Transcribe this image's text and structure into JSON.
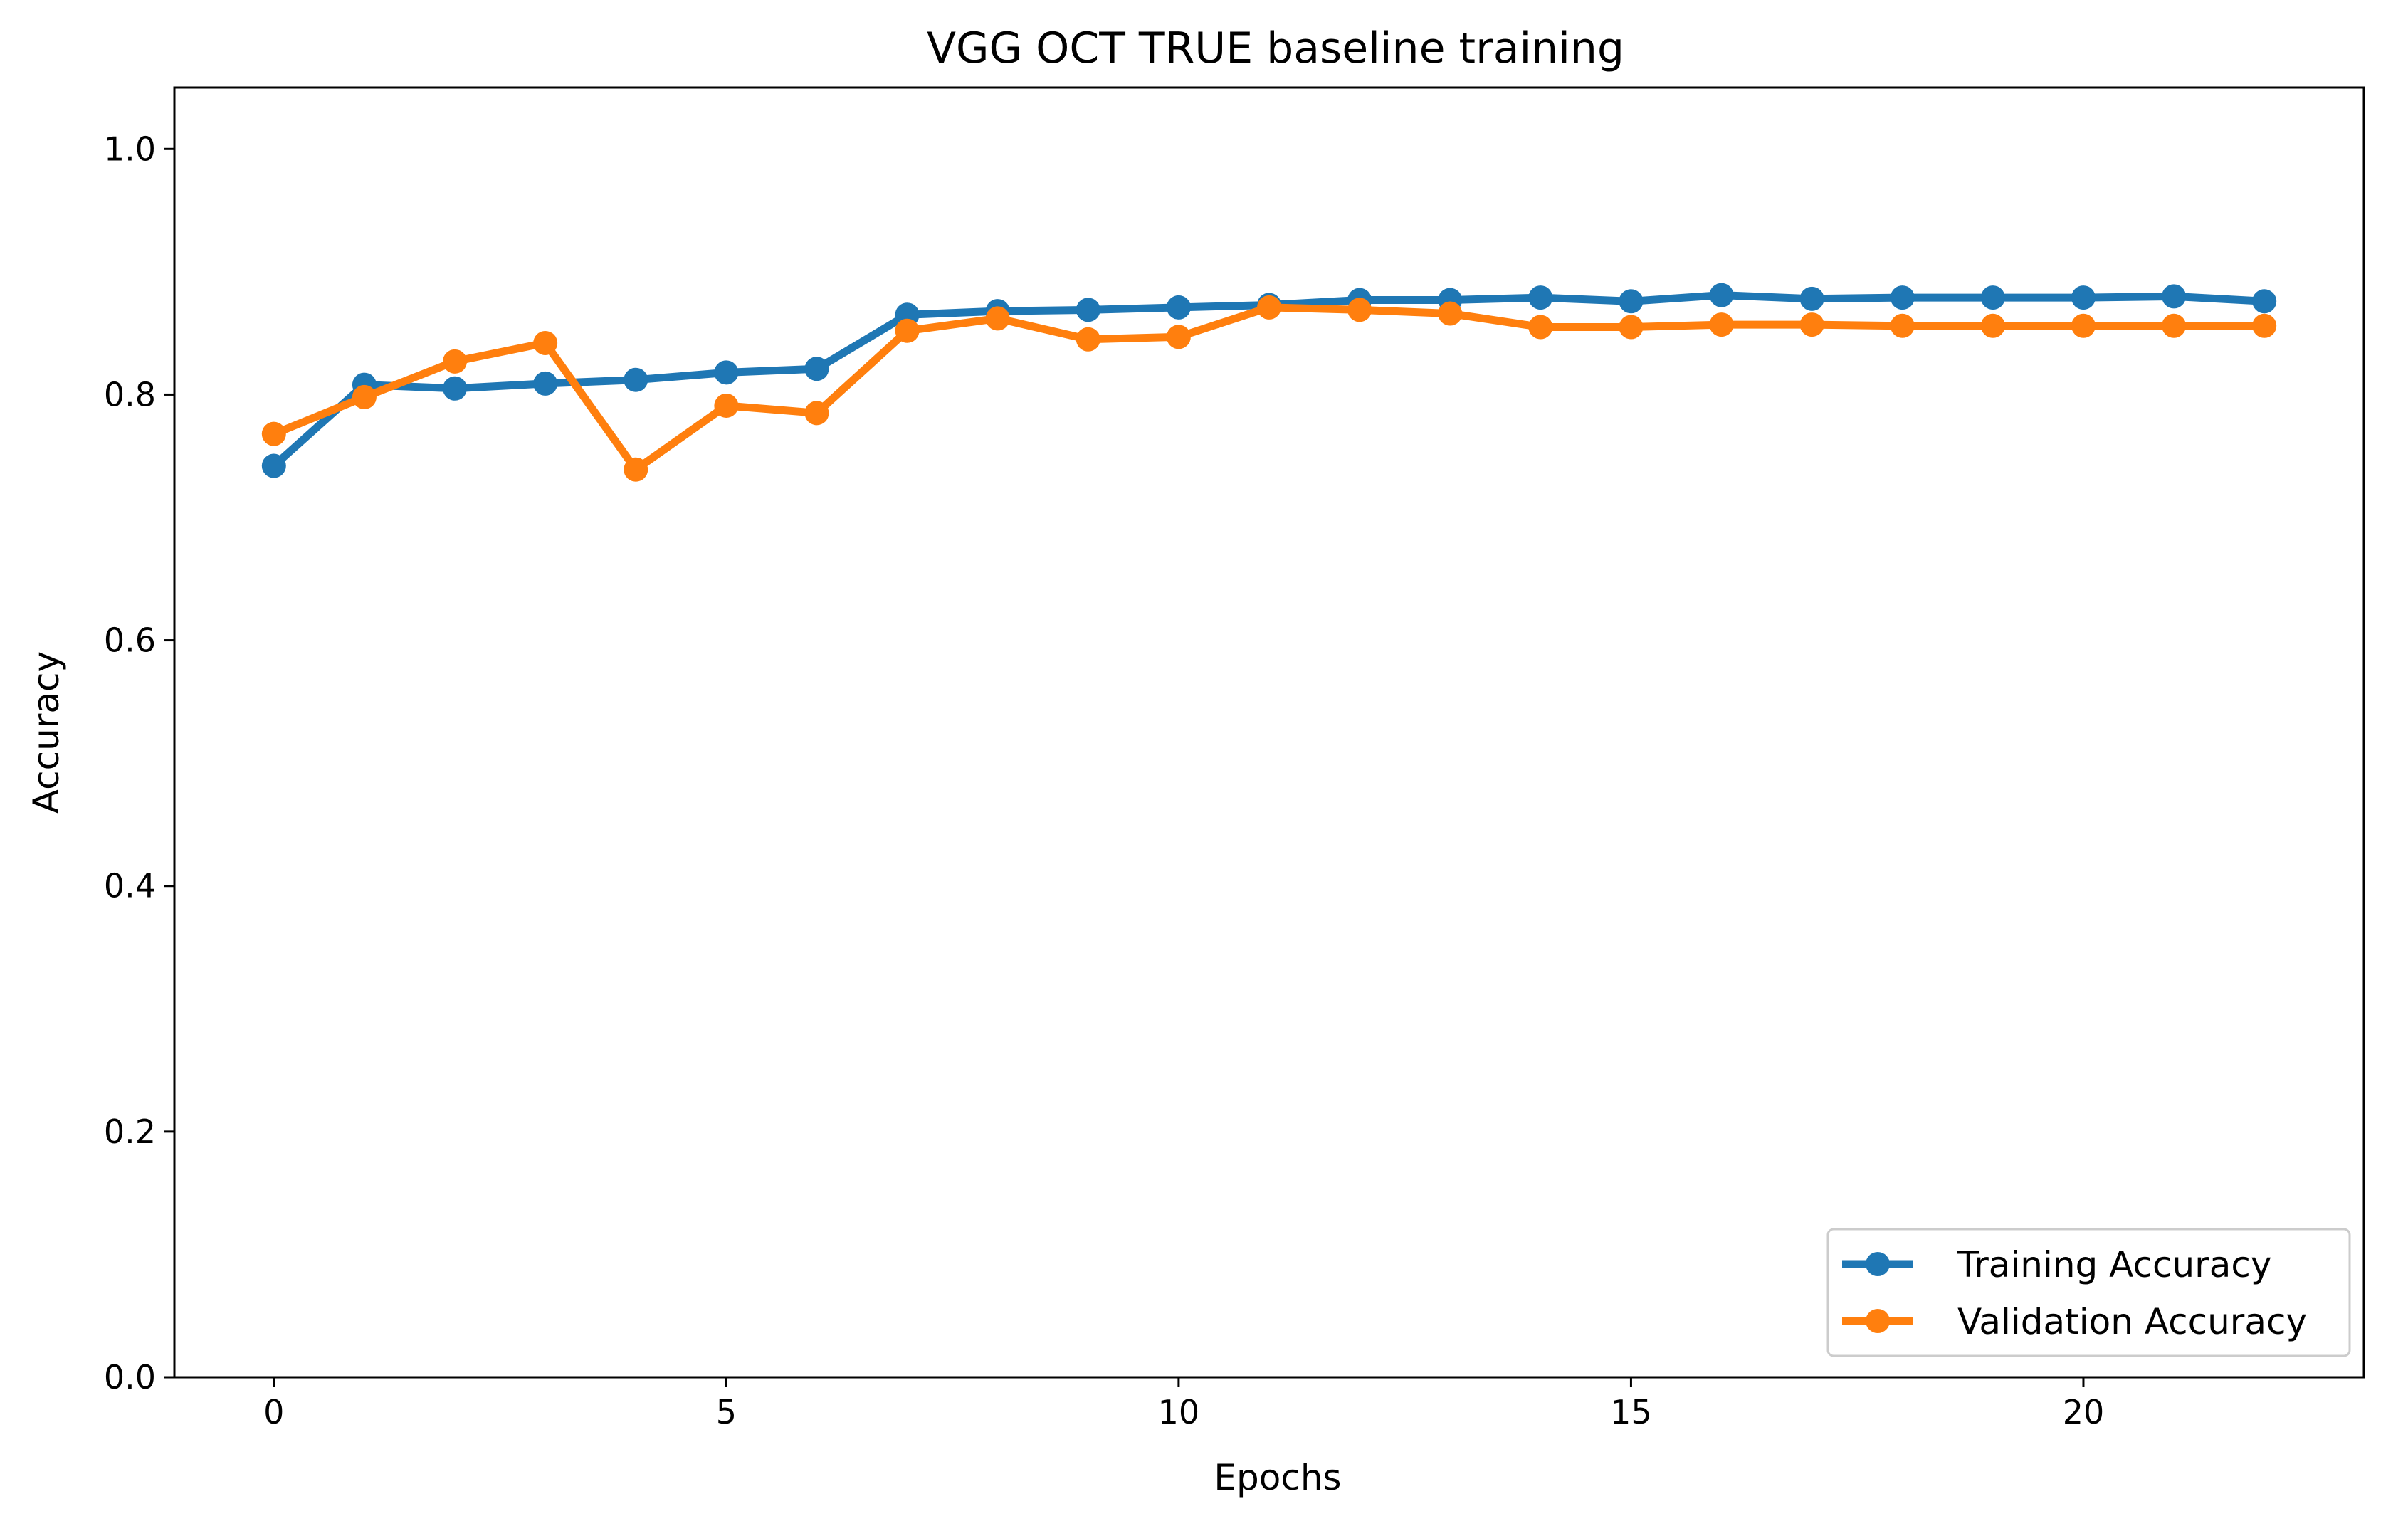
{
  "chart_data": {
    "type": "line",
    "title": "VGG OCT TRUE baseline training",
    "xlabel": "Epochs",
    "ylabel": "Accuracy",
    "xlim": [
      -1.1,
      23.1
    ],
    "ylim": [
      0.0,
      1.05
    ],
    "xticks": [
      0,
      5,
      10,
      15,
      20
    ],
    "xtick_labels": [
      "0",
      "5",
      "10",
      "15",
      "20"
    ],
    "yticks": [
      0.0,
      0.2,
      0.4,
      0.6,
      0.8,
      1.0
    ],
    "ytick_labels": [
      "0.0",
      "0.2",
      "0.4",
      "0.6",
      "0.8",
      "1.0"
    ],
    "grid": false,
    "legend_position": "bottom-right",
    "x": [
      0,
      1,
      2,
      3,
      4,
      5,
      6,
      7,
      8,
      9,
      10,
      11,
      12,
      13,
      14,
      15,
      16,
      17,
      18,
      19,
      20,
      21,
      22
    ],
    "series": [
      {
        "name": "Training Accuracy",
        "color": "#1f77b4",
        "values": [
          0.742,
          0.808,
          0.805,
          0.809,
          0.812,
          0.818,
          0.821,
          0.865,
          0.868,
          0.869,
          0.871,
          0.873,
          0.877,
          0.877,
          0.879,
          0.876,
          0.881,
          0.878,
          0.879,
          0.879,
          0.879,
          0.88,
          0.876
        ]
      },
      {
        "name": "Validation Accuracy",
        "color": "#ff7f0e",
        "values": [
          0.768,
          0.798,
          0.827,
          0.842,
          0.739,
          0.791,
          0.785,
          0.852,
          0.862,
          0.845,
          0.847,
          0.871,
          0.869,
          0.866,
          0.855,
          0.855,
          0.857,
          0.857,
          0.856,
          0.856,
          0.856,
          0.856,
          0.856
        ]
      }
    ]
  }
}
